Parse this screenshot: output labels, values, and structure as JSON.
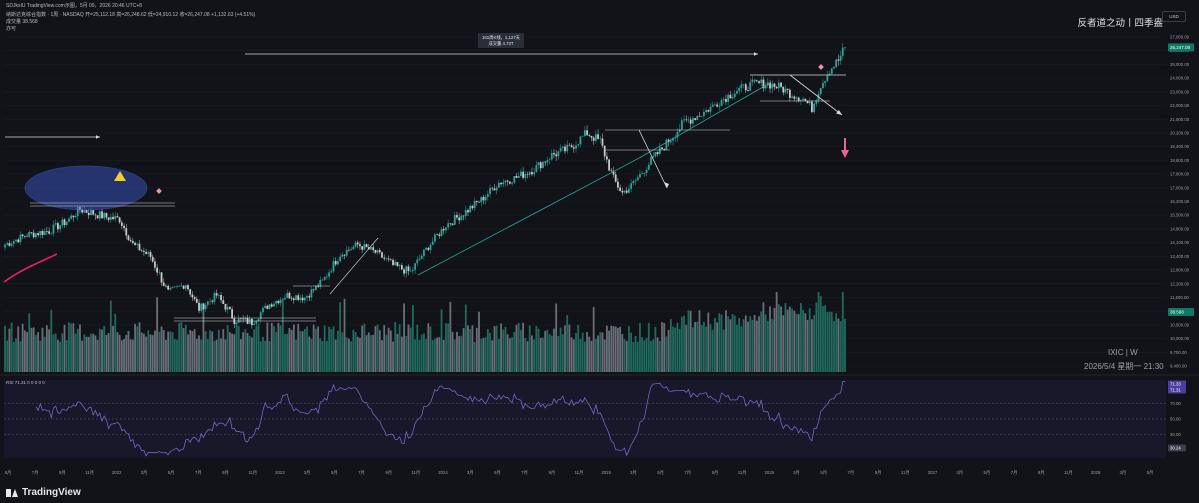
{
  "header": {
    "line1": "SDJksIU TradingView.com示图，5月 09，2026 20:46 UTC+8",
    "line2": "纳斯达克综合指数 · 1周 · NASDAQ  开=25,112.18  高=26,248.62  低=24,910.12  收=26,247.08  +1,132.63 (+4.51%)",
    "line3": "成交量  38.568",
    "line4": "亦可"
  },
  "brand": "反者道之动丨四季盎",
  "currency": "USD",
  "watermark": {
    "symbol": "IXIC | W",
    "datetime": "2026/5/4 星期一 21:30"
  },
  "tradingview_label": "TradingView",
  "annotation": {
    "line1": "161周K线，1,127天",
    "line2": "成交量 4.73T"
  },
  "price_badge": "26,247.08",
  "volume_badge": "38.568",
  "rsi": {
    "label": "RSI  71.31  0  0  0  0  0",
    "badge_top": "71.33",
    "badge_top2": "71.31",
    "badge_low": "30.24"
  },
  "colors": {
    "up": "#26a69a",
    "down": "#c8c8c8",
    "volume_up": "#1f6b5e",
    "volume_down": "#6a6e78",
    "rsi": "#7b6fd8",
    "ma": "#e91e63",
    "accent_arrow": "#f06292",
    "warning": "#f5d020"
  },
  "chart_data": {
    "type": "candlestick",
    "symbol": "IXIC",
    "interval": "W",
    "y_axis_ticks": [
      27000,
      26000,
      25000,
      24000,
      23000,
      22000,
      21000,
      20200,
      19400,
      18600,
      17800,
      17000,
      16200,
      15500,
      14800,
      14100,
      13400,
      12800,
      12200,
      11600,
      11000,
      10500,
      10000,
      9700,
      9400
    ],
    "y_axis_labels": [
      "27,000.00",
      "26,000.00",
      "25,000.00",
      "24,000.00",
      "23,000.00",
      "22,000.00",
      "21,000.00",
      "20,200.00",
      "19,400.00",
      "18,600.00",
      "17,800.00",
      "17,000.00",
      "16,200.00",
      "15,500.00",
      "14,800.00",
      "14,100.00",
      "13,400.00",
      "12,800.00",
      "12,200.00",
      "11,600.00",
      "11,000.00",
      "10,500.00",
      "10,000.00",
      "9,700.00",
      "9,400.00"
    ],
    "ylim": [
      9400,
      27000
    ],
    "x_axis_labels": [
      "5月",
      "7月",
      "9月",
      "11月",
      "2022",
      "3月",
      "5月",
      "7月",
      "9月",
      "11月",
      "2023",
      "3月",
      "5月",
      "7月",
      "9月",
      "11月",
      "2024",
      "3月",
      "5月",
      "7月",
      "9月",
      "11月",
      "2025",
      "3月",
      "5月",
      "7月",
      "9月",
      "11月",
      "2026",
      "3月",
      "5月",
      "7月",
      "9月",
      "11月",
      "2027",
      "3月",
      "5月",
      "7月",
      "9月",
      "11月",
      "2028",
      "3月",
      "5月"
    ],
    "rsi_levels": [
      70,
      50,
      30
    ],
    "rsi_ticks": [
      "70.00",
      "50.00",
      "30.00"
    ],
    "close_anchors": [
      [
        0,
        14000
      ],
      [
        10,
        14500
      ],
      [
        20,
        14700
      ],
      [
        28,
        15200
      ],
      [
        34,
        15800
      ],
      [
        40,
        15600
      ],
      [
        46,
        15400
      ],
      [
        52,
        15300
      ],
      [
        58,
        14000
      ],
      [
        66,
        13400
      ],
      [
        74,
        11800
      ],
      [
        82,
        12200
      ],
      [
        88,
        11100
      ],
      [
        96,
        11700
      ],
      [
        104,
        10700
      ],
      [
        112,
        10600
      ],
      [
        120,
        11300
      ],
      [
        128,
        11700
      ],
      [
        136,
        11600
      ],
      [
        144,
        12300
      ],
      [
        152,
        13500
      ],
      [
        160,
        14000
      ],
      [
        168,
        13600
      ],
      [
        176,
        13000
      ],
      [
        184,
        12700
      ],
      [
        192,
        13900
      ],
      [
        200,
        15000
      ],
      [
        208,
        15600
      ],
      [
        216,
        16300
      ],
      [
        224,
        17300
      ],
      [
        232,
        17600
      ],
      [
        240,
        18100
      ],
      [
        248,
        18900
      ],
      [
        256,
        19300
      ],
      [
        264,
        20200
      ],
      [
        270,
        19700
      ],
      [
        276,
        17500
      ],
      [
        280,
        16700
      ],
      [
        284,
        17100
      ],
      [
        292,
        18400
      ],
      [
        300,
        19600
      ],
      [
        308,
        20800
      ],
      [
        316,
        21400
      ],
      [
        324,
        22300
      ],
      [
        332,
        23100
      ],
      [
        340,
        23600
      ],
      [
        346,
        23600
      ],
      [
        352,
        23300
      ],
      [
        356,
        22900
      ],
      [
        362,
        22500
      ],
      [
        366,
        21800
      ],
      [
        370,
        23500
      ],
      [
        374,
        24600
      ],
      [
        378,
        25300
      ],
      [
        381,
        26247
      ]
    ]
  }
}
